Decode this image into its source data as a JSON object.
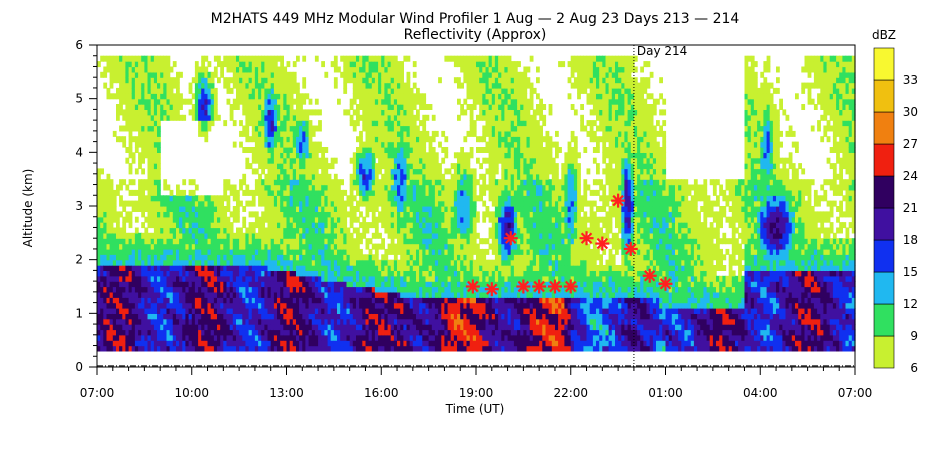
{
  "chart_data": {
    "type": "heatmap",
    "title": "M2HATS 449 MHz Modular Wind Profiler   1 Aug —  2 Aug 23 Days 213 — 214",
    "subtitle": "Reflectivity (Approx)",
    "xlabel": "Time (UT)",
    "ylabel": "Altitude (km)",
    "x_ticks": [
      "07:00",
      "10:00",
      "13:00",
      "16:00",
      "19:00",
      "22:00",
      "01:00",
      "04:00",
      "07:00"
    ],
    "x_tick_hours": [
      0,
      3,
      6,
      9,
      12,
      15,
      18,
      21,
      24
    ],
    "y_ticks": [
      "0",
      "1",
      "2",
      "3",
      "4",
      "5",
      "6"
    ],
    "ylim": [
      0,
      6
    ],
    "xlim_hours_since_0700": [
      0,
      24
    ],
    "day_marker": {
      "label": "Day 214",
      "hours_since_0700": 17.0
    },
    "colorbar": {
      "unit": "dBZ",
      "labels": [
        "33",
        "30",
        "27",
        "24",
        "21",
        "18",
        "15",
        "12",
        "9",
        "6"
      ],
      "levels": [
        6,
        9,
        12,
        15,
        18,
        21,
        24,
        27,
        30,
        33
      ],
      "colors": [
        "#c8f030",
        "#30e060",
        "#20b8f0",
        "#1030f0",
        "#4010a0",
        "#300060",
        "#f02010",
        "#f08010",
        "#f0c010",
        "#f8f830"
      ]
    },
    "markers": {
      "symbol": "asterisk",
      "color": "#ff2020",
      "points": [
        {
          "h": 11.9,
          "alt": 1.5
        },
        {
          "h": 12.5,
          "alt": 1.45
        },
        {
          "h": 13.1,
          "alt": 2.4
        },
        {
          "h": 13.5,
          "alt": 1.5
        },
        {
          "h": 14.0,
          "alt": 1.5
        },
        {
          "h": 14.5,
          "alt": 1.5
        },
        {
          "h": 15.0,
          "alt": 1.5
        },
        {
          "h": 15.5,
          "alt": 2.4
        },
        {
          "h": 16.0,
          "alt": 2.3
        },
        {
          "h": 16.5,
          "alt": 3.1
        },
        {
          "h": 16.9,
          "alt": 2.2
        },
        {
          "h": 17.5,
          "alt": 1.7
        },
        {
          "h": 18.0,
          "alt": 1.55
        }
      ]
    }
  }
}
